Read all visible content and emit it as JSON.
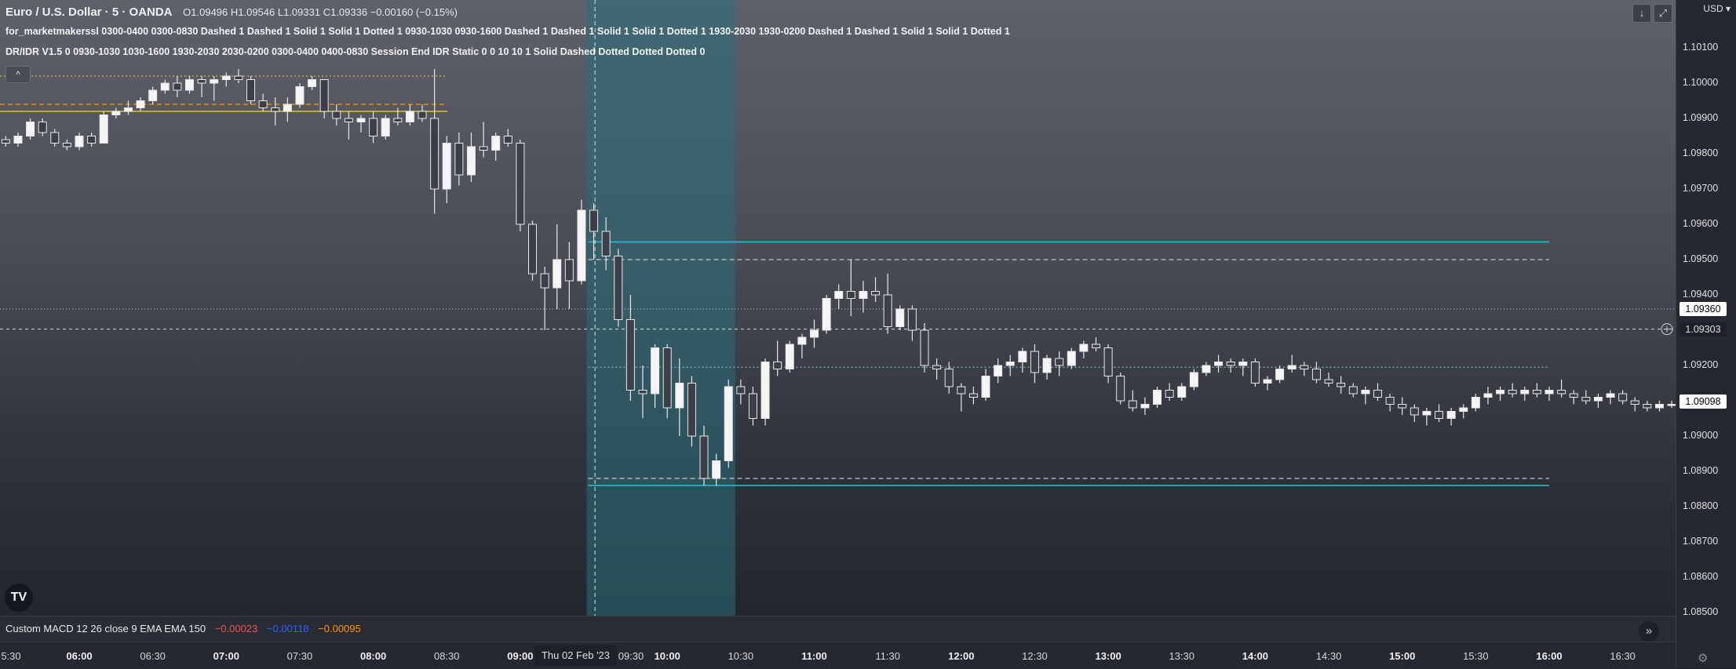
{
  "header": {
    "symbol_title": "Euro / U.S. Dollar · 5 · OANDA",
    "ohlc": "O1.09496  H1.09546  L1.09331  C1.09336  −0.00160 (−0.15%)",
    "indicator1": "for_marketmakerssl 0300-0400 0300-0830 Dashed 1 Dashed 1 Solid 1 Solid 1 Dotted 1 0930-1030 0930-1600 Dashed 1 Dashed 1 Solid 1 Solid 1 Dotted 1 1930-2030 1930-0200 Dashed 1 Dashed 1 Solid 1 Solid 1 Dotted 1",
    "indicator2": "DR/IDR V1.5 0 0930-1030 1030-1600 1930-2030 2030-0200 0300-0400 0400-0830 Session End IDR Static 0 0 10 10 1 Solid Dashed Dotted Dotted Dotted 0"
  },
  "price_scale": {
    "currency": "USD",
    "ticks": [
      "1.10100",
      "1.10000",
      "1.09900",
      "1.09800",
      "1.09700",
      "1.09600",
      "1.09500",
      "1.09400",
      "1.09300",
      "1.09200",
      "1.09100",
      "1.09000",
      "1.08900",
      "1.08800",
      "1.08700",
      "1.08600",
      "1.08500"
    ],
    "crosshair_price": "1.09360",
    "level_price": "1.09303",
    "last_price": "1.09098"
  },
  "time_axis": {
    "labels": [
      "5:30",
      "06:00",
      "06:30",
      "07:00",
      "07:30",
      "08:00",
      "08:30",
      "09:00",
      "09:30",
      "10:00",
      "10:30",
      "11:00",
      "11:30",
      "12:00",
      "12:30",
      "13:00",
      "13:30",
      "14:00",
      "14:30",
      "15:00",
      "15:30",
      "16:00",
      "16:30"
    ],
    "bold_labels": [
      "06:00",
      "07:00",
      "08:00",
      "09:00",
      "10:00",
      "11:00",
      "12:00",
      "13:00",
      "14:00",
      "15:00",
      "16:00"
    ],
    "crosshair_date": "Thu 02 Feb '23"
  },
  "macd": {
    "label": "Custom MACD 12 26 close 9 EMA EMA 150",
    "v1": "−0.00023",
    "v2": "−0.00118",
    "v3": "−0.00095"
  },
  "chart_data": {
    "type": "candlestick",
    "symbol": "EURUSD",
    "timeframe": "5",
    "ylim": [
      1.085,
      1.1015
    ],
    "time_range": [
      "05:25",
      "16:55"
    ],
    "candles": [
      [
        "05:30",
        1.0984,
        1.0985,
        1.0982,
        1.0983
      ],
      [
        "05:35",
        1.0983,
        1.0986,
        1.0982,
        1.0985
      ],
      [
        "05:40",
        1.0985,
        1.099,
        1.0984,
        1.0989
      ],
      [
        "05:45",
        1.0989,
        1.099,
        1.0985,
        1.0986
      ],
      [
        "05:50",
        1.0986,
        1.0987,
        1.0982,
        1.0983
      ],
      [
        "05:55",
        1.0983,
        1.0984,
        1.0981,
        1.0982
      ],
      [
        "06:00",
        1.0982,
        1.0986,
        1.0981,
        1.0985
      ],
      [
        "06:05",
        1.0985,
        1.0986,
        1.0982,
        1.0983
      ],
      [
        "06:10",
        1.0983,
        1.0992,
        1.0983,
        1.0991
      ],
      [
        "06:15",
        1.0991,
        1.0993,
        1.099,
        1.0992
      ],
      [
        "06:20",
        1.0992,
        1.0995,
        1.0991,
        1.0993
      ],
      [
        "06:25",
        1.0993,
        1.0996,
        1.0992,
        1.0995
      ],
      [
        "06:30",
        1.0995,
        1.0999,
        1.0994,
        1.0998
      ],
      [
        "06:35",
        1.0998,
        1.1001,
        1.0997,
        1.1
      ],
      [
        "06:40",
        1.1,
        1.1002,
        1.0996,
        1.0998
      ],
      [
        "06:45",
        1.0998,
        1.1002,
        1.0997,
        1.1001
      ],
      [
        "06:50",
        1.1001,
        1.1002,
        1.0996,
        1.1
      ],
      [
        "06:55",
        1.1,
        1.1002,
        1.0995,
        1.1001
      ],
      [
        "07:00",
        1.1001,
        1.1003,
        1.0999,
        1.1002
      ],
      [
        "07:05",
        1.1002,
        1.1004,
        1.1,
        1.1001
      ],
      [
        "07:10",
        1.1001,
        1.1002,
        1.0994,
        1.0995
      ],
      [
        "07:15",
        1.0995,
        1.0997,
        1.0992,
        1.0993
      ],
      [
        "07:20",
        1.0993,
        1.0996,
        1.0988,
        1.0992
      ],
      [
        "07:25",
        1.0992,
        1.0996,
        1.0989,
        1.0994
      ],
      [
        "07:30",
        1.0994,
        1.1,
        1.0993,
        1.0999
      ],
      [
        "07:35",
        1.0999,
        1.1002,
        1.0998,
        1.1001
      ],
      [
        "07:40",
        1.1001,
        1.1001,
        1.099,
        1.0992
      ],
      [
        "07:45",
        1.0992,
        1.0994,
        1.0988,
        1.099
      ],
      [
        "07:50",
        1.099,
        1.0992,
        1.0984,
        1.0989
      ],
      [
        "07:55",
        1.0989,
        1.0991,
        1.0986,
        1.099
      ],
      [
        "08:00",
        1.099,
        1.0992,
        1.0983,
        1.0985
      ],
      [
        "08:05",
        1.0985,
        1.0991,
        1.0984,
        1.099
      ],
      [
        "08:10",
        1.099,
        1.0993,
        1.0988,
        1.0989
      ],
      [
        "08:15",
        1.0989,
        1.0994,
        1.0988,
        1.0992
      ],
      [
        "08:20",
        1.0992,
        1.0994,
        1.0989,
        1.099
      ],
      [
        "08:25",
        1.099,
        1.1004,
        1.0963,
        1.097
      ],
      [
        "08:30",
        1.097,
        1.0985,
        1.0966,
        1.0983
      ],
      [
        "08:35",
        1.0983,
        1.0986,
        1.0971,
        1.0974
      ],
      [
        "08:40",
        1.0974,
        1.0986,
        1.0972,
        1.0982
      ],
      [
        "08:45",
        1.0982,
        1.0989,
        1.0979,
        1.0981
      ],
      [
        "08:50",
        1.0981,
        1.0986,
        1.0978,
        1.0985
      ],
      [
        "08:55",
        1.0985,
        1.0987,
        1.0982,
        1.0983
      ],
      [
        "09:00",
        1.0983,
        1.0984,
        1.0958,
        1.096
      ],
      [
        "09:05",
        1.096,
        1.0961,
        1.0944,
        1.0946
      ],
      [
        "09:10",
        1.0946,
        1.0948,
        1.093,
        1.0942
      ],
      [
        "09:15",
        1.0942,
        1.096,
        1.0936,
        1.095
      ],
      [
        "09:20",
        1.095,
        1.0955,
        1.0936,
        1.0944
      ],
      [
        "09:25",
        1.0944,
        1.0967,
        1.0943,
        1.0964
      ],
      [
        "09:30",
        1.0964,
        1.0966,
        1.095,
        1.0958
      ],
      [
        "09:35",
        1.0958,
        1.0962,
        1.0947,
        1.0951
      ],
      [
        "09:40",
        1.0951,
        1.0953,
        1.0931,
        1.0933
      ],
      [
        "09:45",
        1.0933,
        1.094,
        1.091,
        1.0913
      ],
      [
        "09:50",
        1.0913,
        1.092,
        1.0905,
        1.0912
      ],
      [
        "09:55",
        1.0912,
        1.0926,
        1.0908,
        1.0925
      ],
      [
        "10:00",
        1.0925,
        1.0926,
        1.0905,
        1.0908
      ],
      [
        "10:05",
        1.0908,
        1.0922,
        1.09,
        1.0915
      ],
      [
        "10:10",
        1.0915,
        1.0917,
        1.0897,
        1.09
      ],
      [
        "10:15",
        1.09,
        1.0903,
        1.0886,
        1.0888
      ],
      [
        "10:20",
        1.0888,
        1.0895,
        1.0886,
        1.0893
      ],
      [
        "10:25",
        1.0893,
        1.0916,
        1.0891,
        1.0914
      ],
      [
        "10:30",
        1.0914,
        1.0916,
        1.0909,
        1.0912
      ],
      [
        "10:35",
        1.0912,
        1.0914,
        1.0903,
        1.0905
      ],
      [
        "10:40",
        1.0905,
        1.0922,
        1.0903,
        1.0921
      ],
      [
        "10:45",
        1.0921,
        1.0927,
        1.0917,
        1.0919
      ],
      [
        "10:50",
        1.0919,
        1.0927,
        1.0918,
        1.0926
      ],
      [
        "10:55",
        1.0926,
        1.0929,
        1.0922,
        1.0928
      ],
      [
        "11:00",
        1.0928,
        1.0933,
        1.0925,
        1.093
      ],
      [
        "11:05",
        1.093,
        1.094,
        1.0929,
        1.0939
      ],
      [
        "11:10",
        1.0939,
        1.0943,
        1.0936,
        1.0941
      ],
      [
        "11:15",
        1.0941,
        1.095,
        1.0934,
        1.0939
      ],
      [
        "11:20",
        1.0939,
        1.0944,
        1.0935,
        1.0941
      ],
      [
        "11:25",
        1.0941,
        1.0945,
        1.0938,
        1.094
      ],
      [
        "11:30",
        1.094,
        1.0946,
        1.0929,
        1.0931
      ],
      [
        "11:35",
        1.0931,
        1.0937,
        1.093,
        1.0936
      ],
      [
        "11:40",
        1.0936,
        1.0937,
        1.0927,
        1.093
      ],
      [
        "11:45",
        1.093,
        1.0932,
        1.0918,
        1.092
      ],
      [
        "11:50",
        1.092,
        1.0922,
        1.0916,
        1.0919
      ],
      [
        "11:55",
        1.0919,
        1.0921,
        1.0912,
        1.0914
      ],
      [
        "12:00",
        1.0914,
        1.0915,
        1.0907,
        1.0912
      ],
      [
        "12:05",
        1.0912,
        1.0914,
        1.0909,
        1.0911
      ],
      [
        "12:10",
        1.0911,
        1.0919,
        1.091,
        1.0917
      ],
      [
        "12:15",
        1.0917,
        1.0922,
        1.0915,
        1.092
      ],
      [
        "12:20",
        1.092,
        1.0923,
        1.0917,
        1.0921
      ],
      [
        "12:25",
        1.0921,
        1.0925,
        1.0918,
        1.0924
      ],
      [
        "12:30",
        1.0924,
        1.0926,
        1.0915,
        1.0918
      ],
      [
        "12:35",
        1.0918,
        1.0923,
        1.0916,
        1.0922
      ],
      [
        "12:40",
        1.0922,
        1.0924,
        1.0917,
        1.092
      ],
      [
        "12:45",
        1.092,
        1.0925,
        1.0919,
        1.0924
      ],
      [
        "12:50",
        1.0924,
        1.0927,
        1.0922,
        1.0926
      ],
      [
        "12:55",
        1.0926,
        1.0928,
        1.0924,
        1.0925
      ],
      [
        "13:00",
        1.0925,
        1.0926,
        1.0915,
        1.0917
      ],
      [
        "13:05",
        1.0917,
        1.0918,
        1.0909,
        1.091
      ],
      [
        "13:10",
        1.091,
        1.0913,
        1.0907,
        1.0908
      ],
      [
        "13:15",
        1.0908,
        1.0911,
        1.0906,
        1.0909
      ],
      [
        "13:20",
        1.0909,
        1.0914,
        1.0908,
        1.0913
      ],
      [
        "13:25",
        1.0913,
        1.0915,
        1.091,
        1.0911
      ],
      [
        "13:30",
        1.0911,
        1.0915,
        1.091,
        1.0914
      ],
      [
        "13:35",
        1.0914,
        1.0919,
        1.0913,
        1.0918
      ],
      [
        "13:40",
        1.0918,
        1.0921,
        1.0917,
        1.092
      ],
      [
        "13:45",
        1.092,
        1.0923,
        1.0918,
        1.0921
      ],
      [
        "13:50",
        1.0921,
        1.0922,
        1.0918,
        1.092
      ],
      [
        "13:55",
        1.092,
        1.0922,
        1.0917,
        1.0921
      ],
      [
        "14:00",
        1.0921,
        1.0922,
        1.0914,
        1.0915
      ],
      [
        "14:05",
        1.0915,
        1.0917,
        1.0913,
        1.0916
      ],
      [
        "14:10",
        1.0916,
        1.092,
        1.0915,
        1.0919
      ],
      [
        "14:15",
        1.0919,
        1.0923,
        1.0918,
        1.092
      ],
      [
        "14:20",
        1.092,
        1.0921,
        1.0917,
        1.0919
      ],
      [
        "14:25",
        1.0919,
        1.0921,
        1.0915,
        1.0916
      ],
      [
        "14:30",
        1.0916,
        1.0918,
        1.0914,
        1.0915
      ],
      [
        "14:35",
        1.0915,
        1.0917,
        1.0912,
        1.0914
      ],
      [
        "14:40",
        1.0914,
        1.0915,
        1.0911,
        1.0912
      ],
      [
        "14:45",
        1.0912,
        1.0914,
        1.0909,
        1.0913
      ],
      [
        "14:50",
        1.0913,
        1.0915,
        1.091,
        1.0911
      ],
      [
        "14:55",
        1.0911,
        1.0912,
        1.0907,
        1.0909
      ],
      [
        "15:00",
        1.0909,
        1.0911,
        1.0906,
        1.0908
      ],
      [
        "15:05",
        1.0908,
        1.0909,
        1.0904,
        1.0906
      ],
      [
        "15:10",
        1.0906,
        1.0908,
        1.0903,
        1.0907
      ],
      [
        "15:15",
        1.0907,
        1.0909,
        1.0904,
        1.0905
      ],
      [
        "15:20",
        1.0905,
        1.0908,
        1.0903,
        1.0907
      ],
      [
        "15:25",
        1.0907,
        1.0909,
        1.0905,
        1.0908
      ],
      [
        "15:30",
        1.0908,
        1.0912,
        1.0907,
        1.0911
      ],
      [
        "15:35",
        1.0911,
        1.0914,
        1.0909,
        1.0912
      ],
      [
        "15:40",
        1.0912,
        1.0914,
        1.091,
        1.0913
      ],
      [
        "15:45",
        1.0913,
        1.0915,
        1.0911,
        1.0912
      ],
      [
        "15:50",
        1.0912,
        1.0914,
        1.091,
        1.0913
      ],
      [
        "15:55",
        1.0913,
        1.0915,
        1.0911,
        1.0912
      ],
      [
        "16:00",
        1.0912,
        1.0914,
        1.091,
        1.0913
      ],
      [
        "16:05",
        1.0913,
        1.0916,
        1.0911,
        1.0912
      ],
      [
        "16:10",
        1.0912,
        1.0913,
        1.0909,
        1.0911
      ],
      [
        "16:15",
        1.0911,
        1.0913,
        1.0909,
        1.091
      ],
      [
        "16:20",
        1.091,
        1.0912,
        1.0908,
        1.0911
      ],
      [
        "16:25",
        1.0911,
        1.0913,
        1.0909,
        1.0912
      ],
      [
        "16:30",
        1.0912,
        1.0913,
        1.0909,
        1.091
      ],
      [
        "16:35",
        1.091,
        1.0911,
        1.0907,
        1.0909
      ],
      [
        "16:40",
        1.0909,
        1.091,
        1.0907,
        1.0908
      ],
      [
        "16:45",
        1.0908,
        1.091,
        1.0907,
        1.0909
      ],
      [
        "16:50",
        1.0909,
        1.091,
        1.0908,
        1.0909
      ]
    ],
    "session_box": {
      "start": "09:30",
      "end": "10:30",
      "color": "#2a6f7a"
    },
    "levels": [
      {
        "price": 1.0955,
        "start": "09:30",
        "end": "16:00",
        "style": "solid",
        "color": "#26c6da"
      },
      {
        "price": 1.095,
        "start": "09:30",
        "end": "16:00",
        "style": "dashed",
        "color": "#c8c8c8"
      },
      {
        "price": 1.09195,
        "start": "09:30",
        "end": "16:00",
        "style": "dotted",
        "color": "#7fb6c8"
      },
      {
        "price": 1.0888,
        "start": "09:30",
        "end": "16:00",
        "style": "dashed",
        "color": "#c8c8c8"
      },
      {
        "price": 1.0886,
        "start": "09:30",
        "end": "16:00",
        "style": "solid",
        "color": "#26c6da"
      },
      {
        "price": 1.1002,
        "start": "05:25",
        "end": "08:30",
        "style": "dotted",
        "color": "#c8b86a"
      },
      {
        "price": 1.0994,
        "start": "05:25",
        "end": "08:30",
        "style": "dashed",
        "color": "#ff9800"
      },
      {
        "price": 1.0992,
        "start": "05:25",
        "end": "08:30",
        "style": "solid",
        "color": "#e6c229"
      }
    ],
    "crosshair": {
      "time": "09:35",
      "price": 1.0936
    },
    "horizontal_line": {
      "price": 1.09303,
      "style": "dashed"
    }
  },
  "colors": {
    "bg": "#1e2029",
    "candle_body": "#f5f5f5",
    "candle_outline": "#e8e8e8",
    "session_box": "#2a6f7a",
    "idr_line": "#26c6da",
    "price_tag_bg": "#ffffff",
    "price_tag_fg": "#000000"
  }
}
